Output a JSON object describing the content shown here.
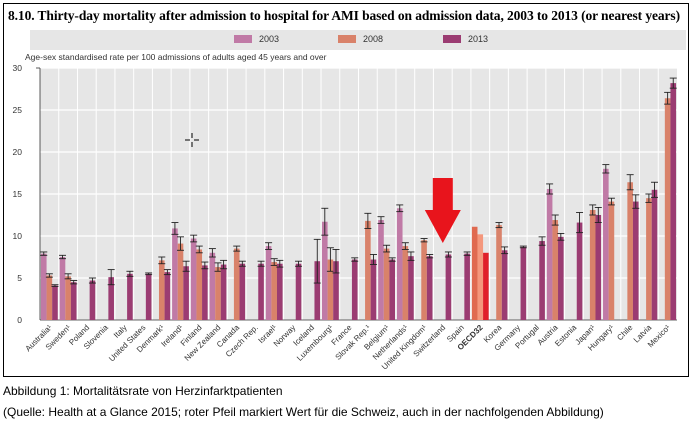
{
  "chart_data": {
    "type": "bar",
    "title": "8.10.  Thirty-day mortality after admission to hospital for AMI based on admission data, 2003 to 2013 (or nearest years)",
    "ylabel": "Age-sex standardised rate per 100 admissions of adults aged 45 years and over",
    "xlabel": "",
    "ylim": [
      0,
      30
    ],
    "yticks": [
      0,
      5,
      10,
      15,
      20,
      25,
      30
    ],
    "grid": true,
    "legend_placement": "top",
    "categories": [
      "Australia¹",
      "Sweden¹",
      "Poland",
      "Slovenia",
      "Italy",
      "United States",
      "Denmark¹",
      "Ireland¹",
      "Finland",
      "New Zealand",
      "Canada",
      "Czech Rep.",
      "Israel¹",
      "Norway",
      "Iceland",
      "Luxembourg¹",
      "France",
      "Slovak Rep.¹",
      "Belgium¹",
      "Netherlands¹",
      "United Kingdom¹",
      "Switzerland",
      "Spain",
      "OECD32",
      "Korea",
      "Germany",
      "Portugal",
      "Austria",
      "Estonia",
      "Japan¹",
      "Hungary¹",
      "Chile",
      "Latvia",
      "Mexico¹"
    ],
    "highlight_category": "OECD32",
    "series": [
      {
        "name": "2003",
        "color": "#c07aa6",
        "values": [
          7.9,
          7.5,
          null,
          null,
          null,
          null,
          null,
          10.9,
          9.7,
          8.0,
          null,
          null,
          8.8,
          null,
          null,
          11.7,
          null,
          null,
          11.9,
          13.3,
          null,
          null,
          null,
          11.1,
          null,
          null,
          null,
          15.6,
          null,
          null,
          18.0,
          null,
          null,
          null
        ],
        "error": [
          0.2,
          0.2,
          null,
          null,
          null,
          null,
          null,
          0.7,
          0.4,
          0.5,
          null,
          null,
          0.4,
          null,
          null,
          1.6,
          null,
          null,
          0.4,
          0.4,
          null,
          null,
          null,
          0,
          null,
          null,
          null,
          0.6,
          null,
          null,
          0.5,
          null,
          null,
          null
        ]
      },
      {
        "name": "2008",
        "color": "#d9826a",
        "values": [
          5.3,
          5.2,
          null,
          null,
          null,
          null,
          7.1,
          9.1,
          8.4,
          6.3,
          8.5,
          null,
          6.9,
          null,
          null,
          7.2,
          null,
          11.8,
          8.5,
          8.8,
          9.5,
          null,
          null,
          10.2,
          11.3,
          null,
          null,
          11.9,
          null,
          13.1,
          14.1,
          16.4,
          14.5,
          26.4
        ],
        "error": [
          0.2,
          0.3,
          null,
          null,
          null,
          null,
          0.4,
          0.8,
          0.4,
          0.5,
          0.3,
          null,
          0.4,
          null,
          null,
          1.4,
          null,
          0.9,
          0.4,
          0.4,
          0.2,
          null,
          null,
          0,
          0.3,
          null,
          null,
          0.6,
          null,
          0.6,
          0.4,
          0.9,
          0.5,
          0.7
        ]
      },
      {
        "name": "2013",
        "color": "#9b3c72",
        "values": [
          4.1,
          4.5,
          4.7,
          5.1,
          5.5,
          5.5,
          5.7,
          6.4,
          6.5,
          6.6,
          6.7,
          6.7,
          6.7,
          6.7,
          7.0,
          7.0,
          7.2,
          7.2,
          7.2,
          7.6,
          7.6,
          7.8,
          7.9,
          8.0,
          8.3,
          8.7,
          9.4,
          9.9,
          11.6,
          12.5,
          null,
          14.1,
          15.5,
          28.2
        ],
        "error": [
          0.1,
          0.2,
          0.3,
          0.9,
          0.3,
          0.1,
          0.3,
          0.6,
          0.4,
          0.5,
          0.3,
          0.3,
          0.4,
          0.3,
          2.6,
          1.4,
          0.2,
          0.6,
          0.2,
          0.5,
          0.2,
          0.3,
          0.2,
          0,
          0.4,
          0.1,
          0.5,
          0.4,
          1.2,
          0.9,
          null,
          0.8,
          0.9,
          0.6
        ]
      }
    ],
    "highlight_colors": [
      "#e06a50",
      "#f4977c",
      "#e0202a"
    ]
  },
  "annotation": {
    "type": "arrow",
    "color": "#e8141c",
    "points_to": "Switzerland"
  },
  "caption": {
    "line1": "Abbildung 1: Mortalitätsrate von Herzinfarktpatienten",
    "line2": "(Quelle: Health at a Glance 2015; roter Pfeil markiert Wert für die Schweiz, auch in der nachfolgenden Abbildung)"
  }
}
